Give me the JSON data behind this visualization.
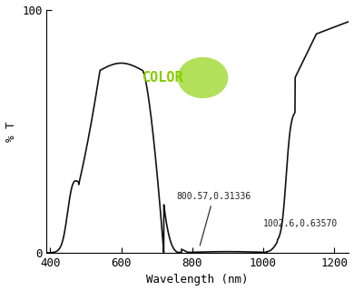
{
  "xlabel": "Wavelength (nm)",
  "ylabel": "% T",
  "xlim": [
    390,
    1240
  ],
  "ylim": [
    0,
    100
  ],
  "xticks": [
    400,
    600,
    800,
    1000,
    1200
  ],
  "yticks": [
    0,
    100
  ],
  "color_circle_color": "#b2e05a",
  "color_text": "COLOR",
  "color_text_color": "#88cc00",
  "annotation1_text": "800.57,0.31336",
  "annotation2_text": "1002.6,0.63570",
  "line_color": "#111111",
  "bg_color": "#ffffff",
  "font_family": "monospace"
}
